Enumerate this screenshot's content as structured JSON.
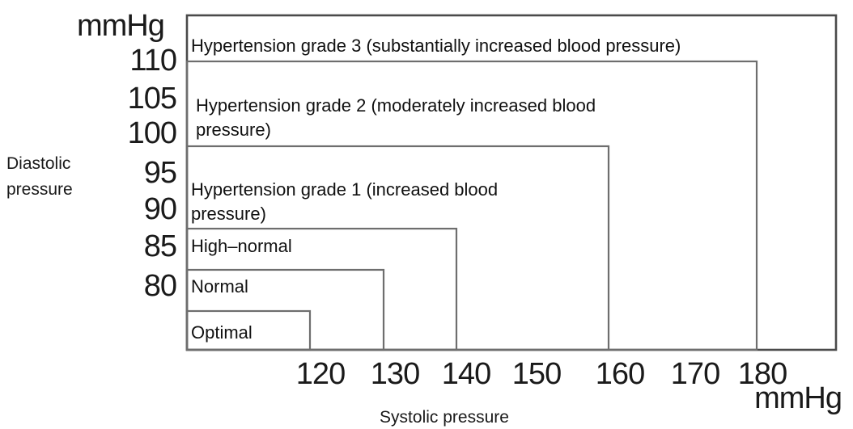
{
  "y_axis": {
    "unit": "mmHg",
    "title_line1": "Diastolic",
    "title_line2": "pressure",
    "ticks": [
      "110",
      "105",
      "100",
      "95",
      "90",
      "85",
      "80"
    ]
  },
  "x_axis": {
    "unit": "mmHg",
    "title": "Systolic pressure",
    "ticks": [
      "120",
      "130",
      "140",
      "150",
      "160",
      "170",
      "180"
    ]
  },
  "zones": [
    {
      "id": "optimal",
      "label": "Optimal",
      "systolic_max": 120,
      "diastolic_max": 80
    },
    {
      "id": "normal",
      "label": "Normal",
      "systolic_max": 130,
      "diastolic_max": 85
    },
    {
      "id": "high-normal",
      "label": "High–normal",
      "systolic_max": 140,
      "diastolic_max": 90
    },
    {
      "id": "grade1",
      "label_line1": "Hypertension grade 1 (increased blood",
      "label_line2": "pressure)",
      "systolic_max": 160,
      "diastolic_max": 100
    },
    {
      "id": "grade2",
      "label_line1": "Hypertension grade 2 (moderately increased blood",
      "label_line2": "pressure)",
      "systolic_max": 180,
      "diastolic_max": 110
    },
    {
      "id": "grade3",
      "label": "Hypertension grade 3 (substantially increased blood pressure)"
    }
  ]
}
